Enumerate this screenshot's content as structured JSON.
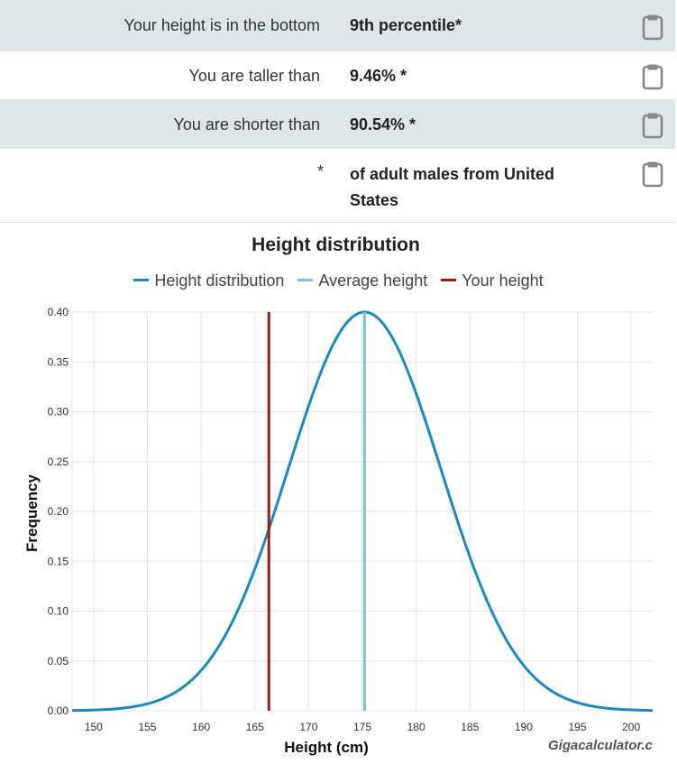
{
  "results": [
    {
      "label": "Your height is in the bottom",
      "value": "9th percentile*"
    },
    {
      "label": "You are taller than",
      "value": "9.46% *"
    },
    {
      "label": "You are shorter than",
      "value": "90.54% *"
    },
    {
      "label": "*",
      "value": "of adult males from United States"
    }
  ],
  "icons": {
    "copy": "clipboard-icon"
  },
  "credit": "Gigacalculator.c",
  "chart_data": {
    "type": "line",
    "title": "Height distribution",
    "xlabel": "Height (cm)",
    "ylabel": "Frequency",
    "xlim": [
      148,
      202
    ],
    "ylim": [
      0,
      0.4
    ],
    "xticks": [
      "150",
      "155",
      "160",
      "165",
      "170",
      "175",
      "180",
      "185",
      "190",
      "195",
      "200"
    ],
    "yticks": [
      "0.00",
      "0.05",
      "0.10",
      "0.15",
      "0.20",
      "0.25",
      "0.30",
      "0.35",
      "0.40"
    ],
    "grid": true,
    "legend_position": "top",
    "series": [
      {
        "name": "Height distribution",
        "color": "#1a8ac6",
        "distribution": "normal",
        "mean": 175.2,
        "sd": 7.1,
        "x": [
          148,
          155,
          160,
          165,
          170,
          175.2,
          180,
          185,
          190,
          195,
          202
        ],
        "y": [
          0.001,
          0.007,
          0.04,
          0.16,
          0.3,
          0.4,
          0.32,
          0.15,
          0.045,
          0.008,
          0.001
        ]
      },
      {
        "name": "Average height",
        "color": "#7fbfdc",
        "x": 175.2
      },
      {
        "name": "Your height",
        "color": "#a01a10",
        "x": 166.3
      }
    ]
  }
}
